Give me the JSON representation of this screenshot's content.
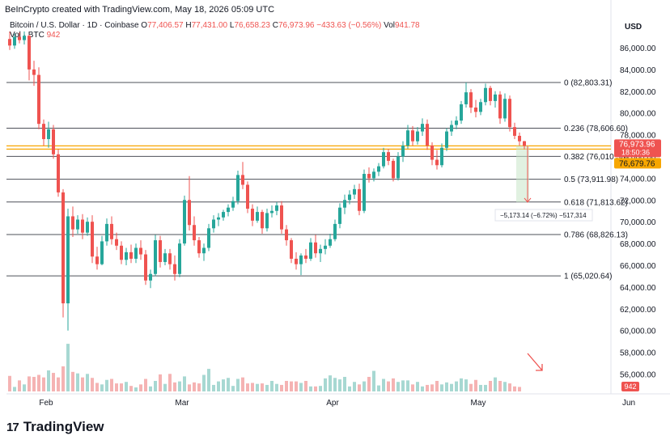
{
  "header": {
    "credit": "BeInCrypto created with TradingView.com, May 18, 2026 05:09 UTC",
    "symbol": "Bitcoin / U.S. Dollar · 1D · Coinbase",
    "ohlc": {
      "o_label": "O",
      "o": "77,406.57",
      "h_label": "H",
      "h": "77,431.00",
      "l_label": "L",
      "l": "76,658.23",
      "c_label": "C",
      "c": "76,973.96",
      "change": "−433.63 (−0.56%)",
      "vol_label": "Vol",
      "vol": "941.78"
    },
    "vol_row": {
      "label": "Vol · BTC",
      "value": "942"
    }
  },
  "price_axis": {
    "currency": "USD",
    "ticks": [
      "86,000.00",
      "84,000.00",
      "82,000.00",
      "80,000.00",
      "78,000.00",
      "76,000.00",
      "74,000.00",
      "72,000.00",
      "70,000.00",
      "68,000.00",
      "66,000.00",
      "64,000.00",
      "62,000.00",
      "60,000.00",
      "58,000.00",
      "56,000.00"
    ]
  },
  "time_axis": {
    "labels": [
      {
        "label": "Feb",
        "day": 0
      },
      {
        "label": "Mar",
        "day": 28
      },
      {
        "label": "Apr",
        "day": 59
      },
      {
        "label": "May",
        "day": 89
      },
      {
        "label": "Jun",
        "day": 120
      }
    ]
  },
  "badges": {
    "last_price": "76,973.96",
    "countdown": "18:50:36",
    "orange_level": "76,679.76",
    "volume": "942"
  },
  "fib_levels": [
    {
      "label": "0 (82,803.31)",
      "price": 82803.31
    },
    {
      "label": "0.236 (78,606.60)",
      "price": 78606.6
    },
    {
      "label": "0.382 (76,010.33)",
      "price": 76010.33
    },
    {
      "label": "0.5 (73,911.98)",
      "price": 73911.98
    },
    {
      "label": "0.618 (71,813.62)",
      "price": 71813.62
    },
    {
      "label": "0.786 (68,826.13)",
      "price": 68826.13
    },
    {
      "label": "1 (65,020.64)",
      "price": 65020.64
    }
  ],
  "measure_label": "−5,173.14 (−6.72%) −517,314",
  "brand": {
    "name": "TradingView",
    "icon": "17"
  },
  "colors": {
    "up": "#26a69a",
    "down": "#ef5350",
    "up_vol": "#a7d8d2",
    "down_vol": "#f5b3b3",
    "orange": "#f7a600",
    "fib": "#131722"
  },
  "chart_data": {
    "type": "candlestick",
    "title": "Bitcoin / U.S. Dollar · 1D · Coinbase",
    "price_range": [
      55000,
      87500
    ],
    "series": [
      {
        "name": "price",
        "values": [
          {
            "o": 86800,
            "h": 87500,
            "l": 85800,
            "c": 86200
          },
          {
            "o": 86200,
            "h": 87300,
            "l": 85900,
            "c": 87000
          },
          {
            "o": 87000,
            "h": 87400,
            "l": 86400,
            "c": 86700
          },
          {
            "o": 86700,
            "h": 87500,
            "l": 86300,
            "c": 87100
          },
          {
            "o": 87100,
            "h": 87200,
            "l": 83000,
            "c": 84000
          },
          {
            "o": 84000,
            "h": 84800,
            "l": 82500,
            "c": 83500
          },
          {
            "o": 83500,
            "h": 84200,
            "l": 78500,
            "c": 79000
          },
          {
            "o": 79000,
            "h": 79400,
            "l": 77000,
            "c": 77600
          },
          {
            "o": 77600,
            "h": 79200,
            "l": 76800,
            "c": 78500
          },
          {
            "o": 78500,
            "h": 78900,
            "l": 75800,
            "c": 76200
          },
          {
            "o": 76200,
            "h": 76700,
            "l": 72300,
            "c": 72700
          },
          {
            "o": 72700,
            "h": 73000,
            "l": 61200,
            "c": 62500
          },
          {
            "o": 62500,
            "h": 71200,
            "l": 60000,
            "c": 70500
          },
          {
            "o": 70500,
            "h": 71400,
            "l": 68600,
            "c": 69300
          },
          {
            "o": 69300,
            "h": 70600,
            "l": 68900,
            "c": 70200
          },
          {
            "o": 70200,
            "h": 70700,
            "l": 68400,
            "c": 69000
          },
          {
            "o": 69000,
            "h": 70400,
            "l": 68700,
            "c": 70000
          },
          {
            "o": 70000,
            "h": 70600,
            "l": 66200,
            "c": 66800
          },
          {
            "o": 66800,
            "h": 67700,
            "l": 65600,
            "c": 66100
          },
          {
            "o": 66100,
            "h": 68700,
            "l": 66000,
            "c": 68200
          },
          {
            "o": 68200,
            "h": 70300,
            "l": 67800,
            "c": 69800
          },
          {
            "o": 69800,
            "h": 70500,
            "l": 67900,
            "c": 68400
          },
          {
            "o": 68400,
            "h": 69000,
            "l": 67400,
            "c": 67800
          },
          {
            "o": 67800,
            "h": 68200,
            "l": 66100,
            "c": 66500
          },
          {
            "o": 66500,
            "h": 67600,
            "l": 66000,
            "c": 67200
          },
          {
            "o": 67200,
            "h": 67900,
            "l": 66200,
            "c": 66600
          },
          {
            "o": 66600,
            "h": 68000,
            "l": 66200,
            "c": 67600
          },
          {
            "o": 67600,
            "h": 68300,
            "l": 66500,
            "c": 67000
          },
          {
            "o": 67000,
            "h": 67400,
            "l": 64200,
            "c": 64600
          },
          {
            "o": 64600,
            "h": 65600,
            "l": 63900,
            "c": 65200
          },
          {
            "o": 65200,
            "h": 68800,
            "l": 65000,
            "c": 68300
          },
          {
            "o": 68300,
            "h": 68700,
            "l": 65800,
            "c": 66300
          },
          {
            "o": 66300,
            "h": 67500,
            "l": 66000,
            "c": 67100
          },
          {
            "o": 67100,
            "h": 67500,
            "l": 65600,
            "c": 66100
          },
          {
            "o": 66100,
            "h": 66900,
            "l": 64600,
            "c": 65200
          },
          {
            "o": 65200,
            "h": 68400,
            "l": 64900,
            "c": 68000
          },
          {
            "o": 68000,
            "h": 72400,
            "l": 67800,
            "c": 72000
          },
          {
            "o": 72000,
            "h": 74200,
            "l": 69200,
            "c": 69700
          },
          {
            "o": 69700,
            "h": 70500,
            "l": 67800,
            "c": 68300
          },
          {
            "o": 68300,
            "h": 68600,
            "l": 66700,
            "c": 67100
          },
          {
            "o": 67100,
            "h": 68000,
            "l": 66400,
            "c": 67600
          },
          {
            "o": 67600,
            "h": 69800,
            "l": 67300,
            "c": 69400
          },
          {
            "o": 69400,
            "h": 70600,
            "l": 69000,
            "c": 70200
          },
          {
            "o": 70200,
            "h": 70800,
            "l": 69600,
            "c": 70400
          },
          {
            "o": 70400,
            "h": 71100,
            "l": 70100,
            "c": 70900
          },
          {
            "o": 70900,
            "h": 71600,
            "l": 70500,
            "c": 71300
          },
          {
            "o": 71300,
            "h": 72300,
            "l": 71000,
            "c": 71900
          },
          {
            "o": 71900,
            "h": 74700,
            "l": 71600,
            "c": 74300
          },
          {
            "o": 74300,
            "h": 75500,
            "l": 73000,
            "c": 73400
          },
          {
            "o": 73400,
            "h": 73700,
            "l": 70800,
            "c": 71200
          },
          {
            "o": 71200,
            "h": 71600,
            "l": 69600,
            "c": 70100
          },
          {
            "o": 70100,
            "h": 71400,
            "l": 69900,
            "c": 70900
          },
          {
            "o": 70900,
            "h": 71100,
            "l": 68900,
            "c": 69400
          },
          {
            "o": 69400,
            "h": 71200,
            "l": 69100,
            "c": 70800
          },
          {
            "o": 70800,
            "h": 71500,
            "l": 70400,
            "c": 71000
          },
          {
            "o": 71000,
            "h": 71800,
            "l": 70600,
            "c": 71500
          },
          {
            "o": 71500,
            "h": 71900,
            "l": 68900,
            "c": 69300
          },
          {
            "o": 69300,
            "h": 69700,
            "l": 67800,
            "c": 68300
          },
          {
            "o": 68300,
            "h": 68500,
            "l": 66200,
            "c": 66600
          },
          {
            "o": 66600,
            "h": 67200,
            "l": 65600,
            "c": 66100
          },
          {
            "o": 66100,
            "h": 67100,
            "l": 65100,
            "c": 66900
          },
          {
            "o": 66900,
            "h": 67500,
            "l": 66200,
            "c": 66600
          },
          {
            "o": 66600,
            "h": 68500,
            "l": 66400,
            "c": 68100
          },
          {
            "o": 68100,
            "h": 68800,
            "l": 66700,
            "c": 67100
          },
          {
            "o": 67100,
            "h": 67900,
            "l": 66300,
            "c": 67500
          },
          {
            "o": 67500,
            "h": 68400,
            "l": 67000,
            "c": 67800
          },
          {
            "o": 67800,
            "h": 68900,
            "l": 67600,
            "c": 68400
          },
          {
            "o": 68400,
            "h": 70200,
            "l": 68200,
            "c": 69800
          },
          {
            "o": 69800,
            "h": 71700,
            "l": 69400,
            "c": 71300
          },
          {
            "o": 71300,
            "h": 72500,
            "l": 70700,
            "c": 72000
          },
          {
            "o": 72000,
            "h": 72900,
            "l": 71600,
            "c": 72500
          },
          {
            "o": 72500,
            "h": 73400,
            "l": 72100,
            "c": 73000
          },
          {
            "o": 73000,
            "h": 73500,
            "l": 70600,
            "c": 71000
          },
          {
            "o": 71000,
            "h": 74800,
            "l": 70800,
            "c": 74400
          },
          {
            "o": 74400,
            "h": 75000,
            "l": 73600,
            "c": 74000
          },
          {
            "o": 74000,
            "h": 74900,
            "l": 73700,
            "c": 74600
          },
          {
            "o": 74600,
            "h": 75400,
            "l": 74200,
            "c": 75100
          },
          {
            "o": 75100,
            "h": 76800,
            "l": 74900,
            "c": 76400
          },
          {
            "o": 76400,
            "h": 76700,
            "l": 75200,
            "c": 75600
          },
          {
            "o": 75600,
            "h": 75800,
            "l": 73700,
            "c": 74000
          },
          {
            "o": 74000,
            "h": 76400,
            "l": 73800,
            "c": 76000
          },
          {
            "o": 76000,
            "h": 77400,
            "l": 75500,
            "c": 77000
          },
          {
            "o": 77000,
            "h": 78900,
            "l": 76700,
            "c": 78400
          },
          {
            "o": 78400,
            "h": 78800,
            "l": 77000,
            "c": 77400
          },
          {
            "o": 77400,
            "h": 78700,
            "l": 77100,
            "c": 78300
          },
          {
            "o": 78300,
            "h": 79500,
            "l": 77900,
            "c": 79000
          },
          {
            "o": 79000,
            "h": 79400,
            "l": 76600,
            "c": 77000
          },
          {
            "o": 77000,
            "h": 77300,
            "l": 75200,
            "c": 75700
          },
          {
            "o": 75700,
            "h": 76600,
            "l": 74800,
            "c": 75200
          },
          {
            "o": 75200,
            "h": 77200,
            "l": 75000,
            "c": 76800
          },
          {
            "o": 76800,
            "h": 78600,
            "l": 76500,
            "c": 78300
          },
          {
            "o": 78300,
            "h": 79300,
            "l": 77900,
            "c": 78900
          },
          {
            "o": 78900,
            "h": 79700,
            "l": 78500,
            "c": 79300
          },
          {
            "o": 79300,
            "h": 81100,
            "l": 79000,
            "c": 80800
          },
          {
            "o": 80800,
            "h": 82800,
            "l": 80500,
            "c": 81900
          },
          {
            "o": 81900,
            "h": 82200,
            "l": 80000,
            "c": 80500
          },
          {
            "o": 80500,
            "h": 81200,
            "l": 79600,
            "c": 80100
          },
          {
            "o": 80100,
            "h": 81300,
            "l": 79800,
            "c": 81000
          },
          {
            "o": 81000,
            "h": 82700,
            "l": 80700,
            "c": 82300
          },
          {
            "o": 82300,
            "h": 82500,
            "l": 80700,
            "c": 81100
          },
          {
            "o": 81100,
            "h": 82000,
            "l": 80500,
            "c": 81700
          },
          {
            "o": 81700,
            "h": 82000,
            "l": 79000,
            "c": 79500
          },
          {
            "o": 79500,
            "h": 81800,
            "l": 79200,
            "c": 81300
          },
          {
            "o": 81300,
            "h": 81600,
            "l": 78300,
            "c": 78700
          },
          {
            "o": 78700,
            "h": 79100,
            "l": 77600,
            "c": 77900
          },
          {
            "o": 77900,
            "h": 78200,
            "l": 77000,
            "c": 77400
          },
          {
            "o": 77406.57,
            "h": 77431.0,
            "l": 76658.23,
            "c": 76973.96
          }
        ]
      }
    ],
    "volume_btc": [
      31,
      9,
      22,
      14,
      30,
      29,
      33,
      28,
      42,
      37,
      28,
      50,
      95,
      39,
      36,
      28,
      35,
      27,
      17,
      14,
      23,
      25,
      16,
      16,
      19,
      11,
      8,
      14,
      25,
      10,
      21,
      34,
      15,
      35,
      18,
      20,
      30,
      14,
      18,
      16,
      33,
      45,
      13,
      20,
      24,
      27,
      11,
      25,
      28,
      16,
      17,
      15,
      16,
      13,
      21,
      15,
      13,
      21,
      20,
      20,
      17,
      21,
      10,
      10,
      11,
      26,
      32,
      27,
      24,
      29,
      10,
      19,
      14,
      20,
      29,
      41,
      12,
      25,
      20,
      26,
      19,
      22,
      22,
      14,
      19,
      10,
      13,
      14,
      21,
      14,
      18,
      15,
      20,
      26,
      24,
      15,
      23,
      13,
      13,
      21,
      28,
      21,
      19,
      16,
      10,
      9
    ]
  }
}
